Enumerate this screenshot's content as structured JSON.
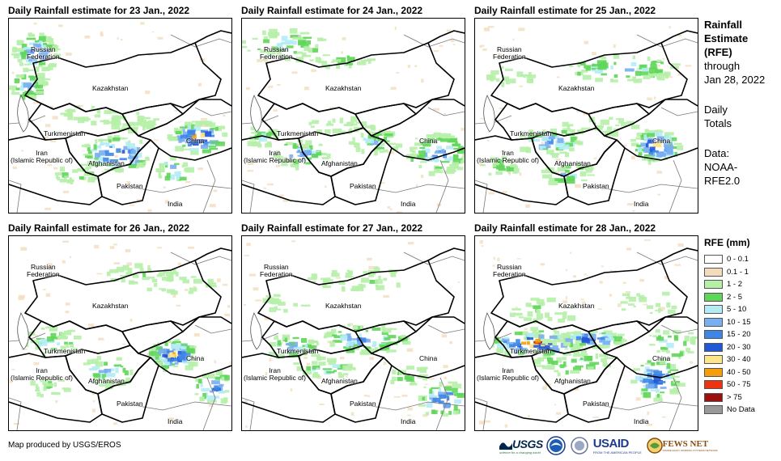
{
  "panels": [
    {
      "title": "Daily Rainfall estimate for 23 Jan., 2022"
    },
    {
      "title": "Daily Rainfall estimate for 24 Jan., 2022"
    },
    {
      "title": "Daily Rainfall estimate for 25 Jan., 2022"
    },
    {
      "title": "Daily Rainfall estimate for 26 Jan., 2022"
    },
    {
      "title": "Daily Rainfall estimate for 27 Jan., 2022"
    },
    {
      "title": "Daily Rainfall estimate for 28 Jan., 2022"
    }
  ],
  "map_labels": {
    "russia_line1": "Russian",
    "russia_line2": "Federation",
    "kazakhstan": "Kazakhstan",
    "turkmenistan": "Turkmenistan",
    "iran_line1": "Iran",
    "iran_line2": "(Islamic Republic of)",
    "afghanistan": "Afghanistan",
    "pakistan": "Pakistan",
    "china": "China",
    "india": "India"
  },
  "side_info": {
    "heading_line1": "Rainfall",
    "heading_line2": "Estimate",
    "heading_line3": "(RFE)",
    "through": "through",
    "end_date": "Jan 28, 2022",
    "totals_line1": "Daily",
    "totals_line2": "Totals",
    "data_line1": "Data:",
    "data_line2": "NOAA-",
    "data_line3": "RFE2.0"
  },
  "legend": {
    "title": "RFE (mm)",
    "items": [
      {
        "label": "0 - 0.1",
        "color": "#ffffff"
      },
      {
        "label": "0.1 - 1",
        "color": "#f2dcbd"
      },
      {
        "label": "1 - 2",
        "color": "#b6f0a8"
      },
      {
        "label": "2 - 5",
        "color": "#5fd65a"
      },
      {
        "label": "5 - 10",
        "color": "#b4ecf5"
      },
      {
        "label": "10 - 15",
        "color": "#79aef0"
      },
      {
        "label": "15 - 20",
        "color": "#3d86e8"
      },
      {
        "label": "20 - 30",
        "color": "#2158d6"
      },
      {
        "label": "30 - 40",
        "color": "#fde68a"
      },
      {
        "label": "40 - 50",
        "color": "#f59e0b"
      },
      {
        "label": "50 - 75",
        "color": "#ee3311"
      },
      {
        "label": "> 75",
        "color": "#991111"
      },
      {
        "label": "No Data",
        "color": "#999999"
      }
    ]
  },
  "credit": "Map produced by USGS/EROS",
  "logos": {
    "usgs": "USGS",
    "usgs_tagline": "science for a changing world",
    "usaid": "USAID",
    "usaid_tagline": "FROM THE AMERICAN PEOPLE",
    "fewsnet": "FEWS NET",
    "fewsnet_tagline": "FAMINE EARLY WARNING SYSTEMS NETWORK"
  }
}
